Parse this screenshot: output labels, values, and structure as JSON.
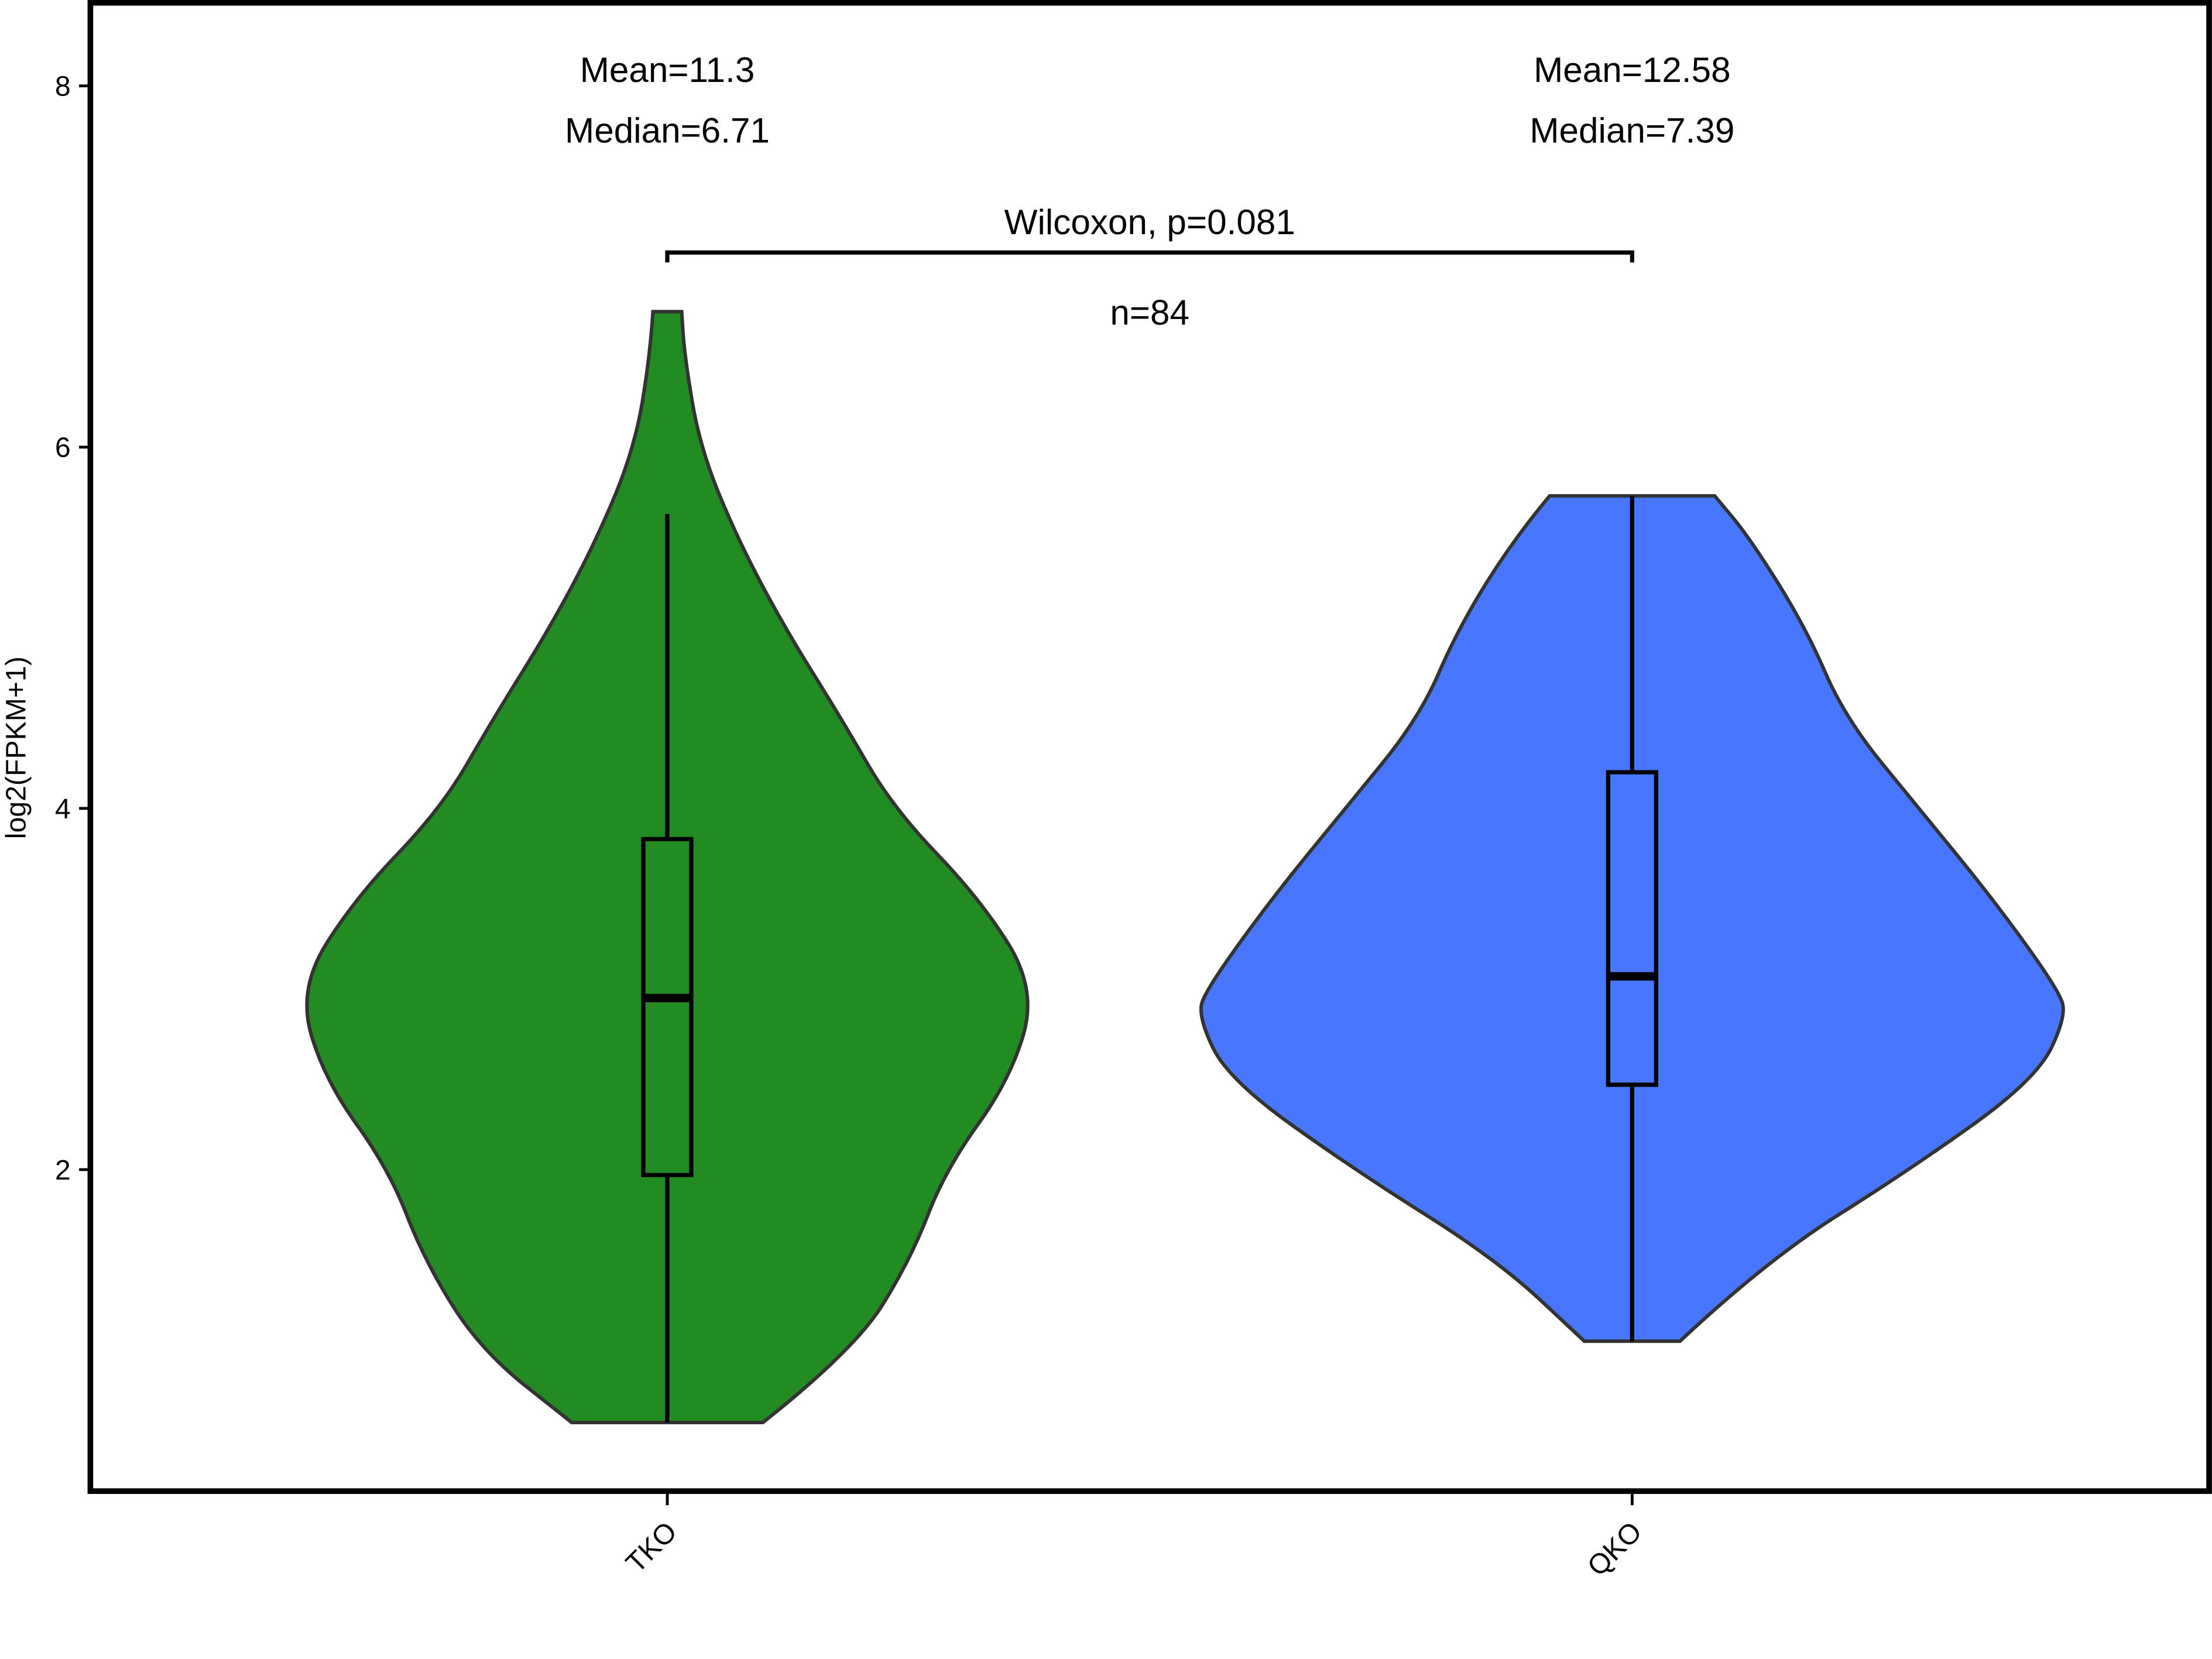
{
  "chart_data": {
    "type": "violin",
    "y_label": "log2(FPKM+1)",
    "categories": [
      "TKO",
      "QKO"
    ],
    "ylim": [
      0.22,
      8.46
    ],
    "yticks": [
      2,
      4,
      6,
      8
    ],
    "series": [
      {
        "name": "TKO",
        "color": "#228B22",
        "box": {
          "whisker_low": 0.6,
          "q1": 1.97,
          "median": 2.95,
          "q3": 3.83,
          "whisker_high": 5.63
        },
        "violin_y": [
          0.6,
          1.0,
          1.5,
          2.0,
          2.5,
          3.0,
          3.5,
          4.0,
          4.5,
          5.0,
          5.5,
          6.0,
          6.5,
          6.75
        ],
        "violin_width": [
          0.22,
          0.43,
          0.56,
          0.64,
          0.79,
          0.85,
          0.72,
          0.52,
          0.4,
          0.27,
          0.16,
          0.075,
          0.04,
          0.033
        ],
        "annotations": [
          "Mean=11.3",
          "Median=6.71"
        ]
      },
      {
        "name": "QKO",
        "color": "#4876FF",
        "box": {
          "whisker_low": 1.05,
          "q1": 2.47,
          "median": 3.07,
          "q3": 4.2,
          "whisker_high": 5.73
        },
        "violin_y": [
          1.05,
          1.5,
          2.0,
          2.5,
          2.85,
          3.0,
          3.5,
          4.0,
          4.5,
          5.0,
          5.5,
          5.73
        ],
        "violin_width": [
          0.11,
          0.31,
          0.64,
          0.93,
          1.0,
          0.98,
          0.83,
          0.66,
          0.49,
          0.4,
          0.27,
          0.19
        ],
        "annotations": [
          "Mean=12.58",
          "Median=7.39"
        ]
      }
    ],
    "comparison": "Wilcoxon, p=0.081",
    "n_label": "n=84"
  }
}
